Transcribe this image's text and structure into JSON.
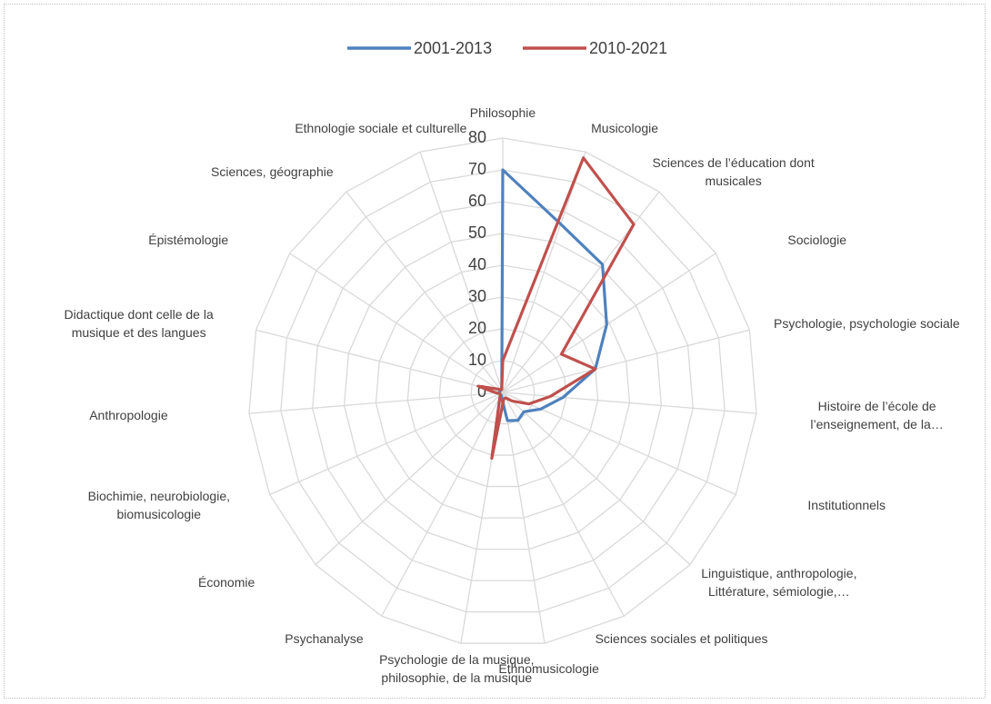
{
  "chart_data": {
    "type": "radar",
    "categories": [
      "Philosophie",
      "Musicologie",
      "Sciences de l’éducation dont musicales",
      "Sociologie",
      "Psychologie, psychologie sociale",
      "Histoire de l’école de l’enseignement, de la…",
      "Institutionnels",
      "Linguistique, anthropologie, Littérature, sémiologie,…",
      "Sciences sociales et politiques",
      "Ethnomusicologie",
      "Psychologie de la musique, philosophie, de la musique",
      "Psychanalyse",
      "Économie",
      "Biochimie, neurobiologie, biomusicologie",
      "Anthropologie",
      "Didactique dont celle de la musique et des langues",
      "Épistémologie",
      "Sciences, géographie",
      "Ethnologie sociale et culturelle"
    ],
    "series": [
      {
        "name": "2001-2013",
        "color": "#4f81bd",
        "values": [
          70,
          56,
          51,
          39,
          30,
          19,
          13,
          9,
          10,
          9,
          2,
          1,
          1,
          1,
          1,
          1,
          1,
          1,
          1
        ]
      },
      {
        "name": "2010-2021",
        "color": "#c0504d",
        "values": [
          10,
          78,
          67,
          22,
          30,
          15,
          9,
          4,
          2,
          2,
          21,
          2,
          1,
          1,
          2,
          8,
          2,
          1,
          1
        ]
      }
    ],
    "ylim": [
      0,
      80
    ],
    "yticks": [
      0,
      10,
      20,
      30,
      40,
      50,
      60,
      70,
      80
    ],
    "grid": true,
    "legend": "top"
  }
}
